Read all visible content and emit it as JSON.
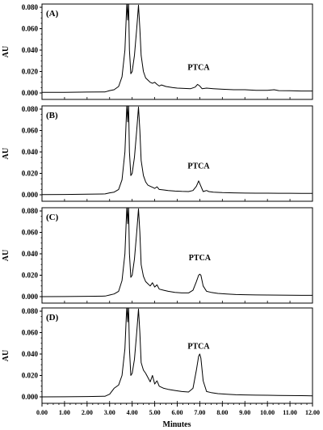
{
  "chart_data": {
    "type": "line",
    "title": "",
    "xlabel": "Minutes",
    "ylabel": "AU",
    "xlim": [
      0.0,
      12.0
    ],
    "ylim": [
      -0.003,
      0.08
    ],
    "grid": false,
    "x_ticks": [
      "0.00",
      "1.00",
      "2.00",
      "3.00",
      "4.00",
      "5.00",
      "6.00",
      "7.00",
      "8.00",
      "9.00",
      "10.00",
      "11.00",
      "12.00"
    ],
    "x_tick_values": [
      0,
      1,
      2,
      3,
      4,
      5,
      6,
      7,
      8,
      9,
      10,
      11,
      12
    ],
    "y_ticks": [
      "0.000",
      "0.020",
      "0.040",
      "0.060",
      "0.080"
    ],
    "y_tick_values": [
      0.0,
      0.02,
      0.04,
      0.06,
      0.08
    ],
    "panels": [
      {
        "label": "(A)",
        "annotation": {
          "text": "PTCA",
          "x": 6.95,
          "y": 0.0215
        },
        "series": [
          {
            "x": [
              0.0,
              1.0,
              2.0,
              2.8,
              3.0,
              3.2,
              3.4,
              3.55,
              3.68,
              3.74,
              3.77,
              3.8,
              3.84,
              3.88,
              3.94,
              4.0,
              4.1,
              4.2,
              4.28,
              4.34,
              4.4,
              4.5,
              4.6,
              4.7,
              4.8,
              4.9,
              5.0,
              5.1,
              5.2,
              5.3,
              5.5,
              5.8,
              6.0,
              6.3,
              6.6,
              6.8,
              6.9,
              7.0,
              7.1,
              7.3,
              7.6,
              8.0,
              8.5,
              9.0,
              9.5,
              10.0,
              10.3,
              10.5,
              11.0,
              11.5,
              12.0
            ],
            "y": [
              0.0005,
              0.0006,
              0.0008,
              0.001,
              0.0022,
              0.003,
              0.006,
              0.015,
              0.04,
              0.072,
              0.085,
              0.068,
              0.085,
              0.04,
              0.018,
              0.02,
              0.035,
              0.06,
              0.082,
              0.06,
              0.035,
              0.02,
              0.014,
              0.012,
              0.01,
              0.009,
              0.01,
              0.008,
              0.0065,
              0.0075,
              0.006,
              0.005,
              0.0045,
              0.0042,
              0.004,
              0.0055,
              0.008,
              0.0065,
              0.004,
              0.0045,
              0.004,
              0.0035,
              0.003,
              0.003,
              0.0025,
              0.0025,
              0.003,
              0.0022,
              0.002,
              0.0018,
              0.0018
            ]
          }
        ]
      },
      {
        "label": "(B)",
        "annotation": {
          "text": "PTCA",
          "x": 6.95,
          "y": 0.0245
        },
        "series": [
          {
            "x": [
              0.0,
              1.0,
              2.0,
              2.8,
              3.0,
              3.2,
              3.4,
              3.55,
              3.68,
              3.74,
              3.77,
              3.8,
              3.84,
              3.88,
              3.94,
              4.0,
              4.1,
              4.2,
              4.28,
              4.34,
              4.4,
              4.5,
              4.6,
              4.7,
              4.8,
              4.9,
              5.0,
              5.1,
              5.2,
              5.4,
              5.6,
              5.9,
              6.2,
              6.5,
              6.7,
              6.85,
              6.95,
              7.05,
              7.15,
              7.3,
              7.4,
              7.6,
              8.0,
              8.5,
              9.0,
              9.5,
              10.0,
              10.5,
              11.0,
              11.5,
              12.0
            ],
            "y": [
              0.0002,
              0.0003,
              0.0005,
              0.0008,
              0.0018,
              0.0025,
              0.005,
              0.014,
              0.04,
              0.072,
              0.085,
              0.068,
              0.085,
              0.04,
              0.018,
              0.02,
              0.035,
              0.06,
              0.082,
              0.06,
              0.032,
              0.018,
              0.012,
              0.009,
              0.008,
              0.007,
              0.006,
              0.0075,
              0.005,
              0.0045,
              0.004,
              0.0035,
              0.0032,
              0.003,
              0.004,
              0.008,
              0.013,
              0.008,
              0.003,
              0.004,
              0.003,
              0.0025,
              0.002,
              0.0018,
              0.0016,
              0.0015,
              0.0015,
              0.0014,
              0.0014,
              0.0013,
              0.0013
            ]
          }
        ]
      },
      {
        "label": "(C)",
        "annotation": {
          "text": "PTCA",
          "x": 7.0,
          "y": 0.034
        },
        "series": [
          {
            "x": [
              0.0,
              1.0,
              2.0,
              2.8,
              3.0,
              3.2,
              3.4,
              3.55,
              3.68,
              3.74,
              3.77,
              3.8,
              3.84,
              3.88,
              3.94,
              4.0,
              4.1,
              4.2,
              4.28,
              4.34,
              4.4,
              4.5,
              4.6,
              4.7,
              4.8,
              4.9,
              5.0,
              5.1,
              5.2,
              5.4,
              5.6,
              5.9,
              6.2,
              6.5,
              6.7,
              6.85,
              6.95,
              7.0,
              7.05,
              7.15,
              7.3,
              7.5,
              7.8,
              8.2,
              8.6,
              9.0,
              9.5,
              10.0,
              10.5,
              11.0,
              11.5,
              12.0
            ],
            "y": [
              0.0,
              0.0001,
              0.0003,
              0.0005,
              0.0015,
              0.0025,
              0.005,
              0.015,
              0.04,
              0.072,
              0.085,
              0.068,
              0.085,
              0.04,
              0.018,
              0.02,
              0.035,
              0.06,
              0.082,
              0.06,
              0.03,
              0.019,
              0.014,
              0.012,
              0.01,
              0.013,
              0.009,
              0.011,
              0.007,
              0.006,
              0.005,
              0.004,
              0.0035,
              0.0035,
              0.006,
              0.014,
              0.02,
              0.021,
              0.02,
              0.01,
              0.005,
              0.004,
              0.003,
              0.0025,
              0.002,
              0.0018,
              0.0016,
              0.0015,
              0.0014,
              0.0013,
              0.0012,
              0.0012
            ]
          }
        ]
      },
      {
        "label": "(D)",
        "annotation": {
          "text": "PTCA",
          "x": 6.95,
          "y": 0.045
        },
        "series": [
          {
            "x": [
              0.0,
              1.0,
              2.0,
              2.8,
              3.0,
              3.2,
              3.4,
              3.55,
              3.68,
              3.74,
              3.77,
              3.8,
              3.84,
              3.88,
              3.94,
              4.0,
              4.1,
              4.2,
              4.28,
              4.34,
              4.4,
              4.5,
              4.6,
              4.7,
              4.8,
              4.9,
              5.0,
              5.1,
              5.2,
              5.4,
              5.6,
              5.9,
              6.2,
              6.5,
              6.7,
              6.85,
              6.95,
              7.0,
              7.05,
              7.15,
              7.3,
              7.5,
              7.8,
              8.2,
              8.6,
              9.0,
              9.5,
              10.0,
              10.5,
              11.0,
              11.5,
              12.0
            ],
            "y": [
              0.0,
              0.0001,
              0.0003,
              0.0006,
              0.0025,
              0.008,
              0.011,
              0.02,
              0.045,
              0.075,
              0.085,
              0.07,
              0.085,
              0.045,
              0.02,
              0.022,
              0.035,
              0.06,
              0.082,
              0.06,
              0.032,
              0.025,
              0.022,
              0.018,
              0.014,
              0.02,
              0.012,
              0.015,
              0.01,
              0.008,
              0.007,
              0.006,
              0.005,
              0.0045,
              0.008,
              0.025,
              0.038,
              0.04,
              0.036,
              0.015,
              0.005,
              0.004,
              0.003,
              0.0025,
              0.002,
              0.0018,
              0.0016,
              0.0015,
              0.0013,
              0.0012,
              0.0011,
              0.001
            ]
          }
        ]
      }
    ]
  }
}
